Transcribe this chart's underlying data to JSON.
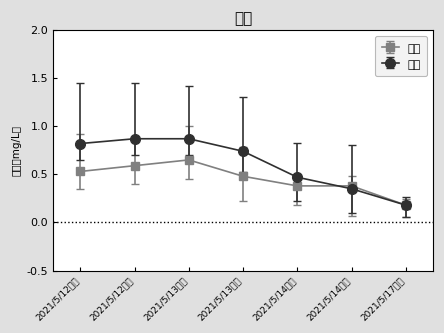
{
  "title": "氨氮",
  "ylabel": "氨氮（mg/L）",
  "ylim": [
    -0.5,
    2.0
  ],
  "yticks": [
    -0.5,
    0.0,
    0.5,
    1.0,
    1.5,
    2.0
  ],
  "x_labels": [
    "2021/5/12上午",
    "2021/5/12下午",
    "2021/5/13上午",
    "2021/5/13下午",
    "2021/5/14上午",
    "2021/5/14下午",
    "2021/5/17上午"
  ],
  "shiyan_y": [
    0.53,
    0.59,
    0.65,
    0.48,
    0.38,
    0.38,
    0.18
  ],
  "shiyan_err_lo": [
    0.18,
    0.19,
    0.2,
    0.26,
    0.2,
    0.31,
    0.12
  ],
  "shiyan_err_hi": [
    0.39,
    0.29,
    0.35,
    0.3,
    0.09,
    0.1,
    0.06
  ],
  "kongbai_y": [
    0.82,
    0.87,
    0.87,
    0.74,
    0.47,
    0.35,
    0.18
  ],
  "kongbai_err_lo": [
    0.17,
    0.17,
    0.17,
    0.22,
    0.25,
    0.25,
    0.12
  ],
  "kongbai_err_hi": [
    0.63,
    0.58,
    0.55,
    0.56,
    0.36,
    0.45,
    0.08
  ],
  "shiyan_color": "#808080",
  "kongbai_color": "#303030",
  "shiyan_marker": "s",
  "kongbai_marker": "o",
  "legend_shiyan": "实验",
  "legend_kongbai": "空白",
  "dotted_line_y": 0.0,
  "bg_color": "#e0e0e0",
  "plot_bg_color": "#ffffff"
}
